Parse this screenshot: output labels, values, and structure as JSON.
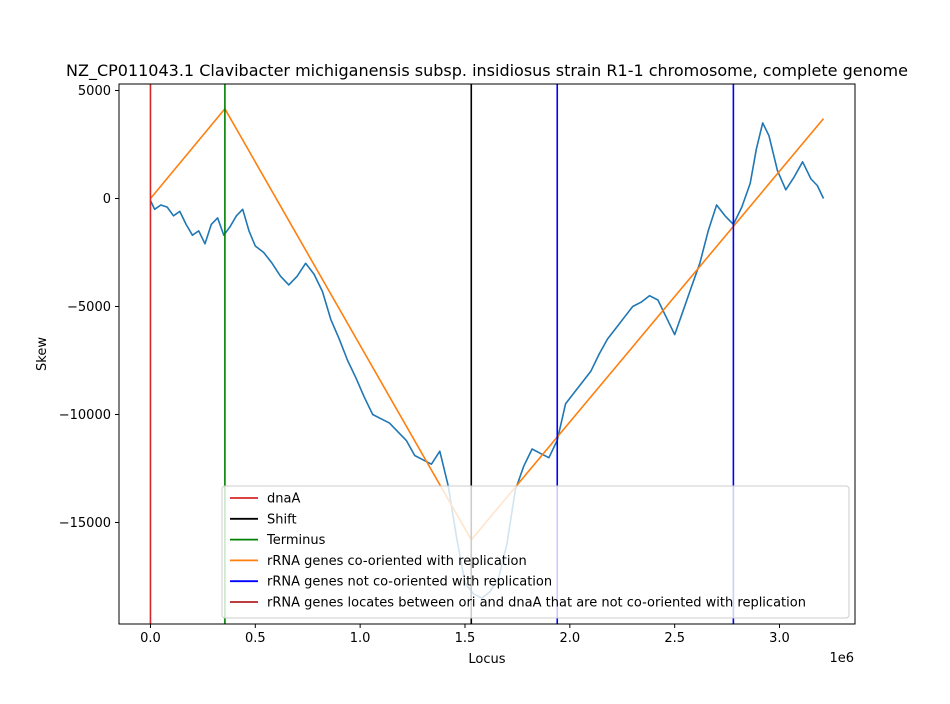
{
  "chart_data": {
    "type": "line",
    "title": "NZ_CP011043.1 Clavibacter michiganensis subsp. insidiosus strain R1-1 chromosome, complete genome",
    "xlabel": "Locus",
    "ylabel": "Skew",
    "x_offset_label": "1e6",
    "xlim": [
      -150000,
      3360000
    ],
    "ylim": [
      -19700,
      5300
    ],
    "x_ticks": [
      0,
      500000,
      1000000,
      1500000,
      2000000,
      2500000,
      3000000
    ],
    "x_tick_labels": [
      "0.0",
      "0.5",
      "1.0",
      "1.5",
      "2.0",
      "2.5",
      "3.0"
    ],
    "y_ticks": [
      5000,
      0,
      -5000,
      -10000,
      -15000
    ],
    "y_tick_labels": [
      "5000",
      "0",
      "−5000",
      "−10000",
      "−15000"
    ],
    "grid": false,
    "legend_placement": "lower-right",
    "series": [
      {
        "kind": "line",
        "color": "#1f77b4",
        "x": [
          0,
          20000,
          50000,
          80000,
          110000,
          140000,
          170000,
          200000,
          230000,
          260000,
          290000,
          320000,
          350000,
          380000,
          410000,
          440000,
          470000,
          500000,
          540000,
          580000,
          620000,
          660000,
          700000,
          740000,
          780000,
          820000,
          860000,
          900000,
          940000,
          980000,
          1020000,
          1060000,
          1100000,
          1140000,
          1180000,
          1220000,
          1260000,
          1300000,
          1340000,
          1380000,
          1420000,
          1460000,
          1500000,
          1540000,
          1580000,
          1620000,
          1660000,
          1700000,
          1740000,
          1780000,
          1820000,
          1860000,
          1900000,
          1940000,
          1980000,
          2020000,
          2060000,
          2100000,
          2140000,
          2180000,
          2220000,
          2260000,
          2300000,
          2340000,
          2380000,
          2420000,
          2460000,
          2500000,
          2540000,
          2580000,
          2620000,
          2660000,
          2700000,
          2740000,
          2780000,
          2820000,
          2860000,
          2890000,
          2920000,
          2950000,
          2990000,
          3030000,
          3070000,
          3110000,
          3150000,
          3180000,
          3210000
        ],
        "y": [
          -100,
          -500,
          -300,
          -400,
          -800,
          -600,
          -1200,
          -1700,
          -1500,
          -2100,
          -1200,
          -900,
          -1700,
          -1300,
          -800,
          -500,
          -1500,
          -2200,
          -2500,
          -3000,
          -3600,
          -4000,
          -3600,
          -3000,
          -3500,
          -4300,
          -5600,
          -6500,
          -7500,
          -8300,
          -9200,
          -10000,
          -10200,
          -10400,
          -10800,
          -11200,
          -11900,
          -12100,
          -12300,
          -11700,
          -13300,
          -15700,
          -17800,
          -18300,
          -18500,
          -18200,
          -17600,
          -16000,
          -13500,
          -12400,
          -11600,
          -11800,
          -12000,
          -11200,
          -9500,
          -9000,
          -8500,
          -8000,
          -7200,
          -6500,
          -6000,
          -5500,
          -5000,
          -4800,
          -4500,
          -4700,
          -5500,
          -6300,
          -5200,
          -4100,
          -3000,
          -1500,
          -300,
          -800,
          -1200,
          -400,
          700,
          2300,
          3500,
          2900,
          1300,
          400,
          1000,
          1700,
          900,
          600,
          0
        ]
      },
      {
        "kind": "line",
        "color": "#ff7f0e",
        "x": [
          0,
          355000,
          1530000,
          3210000
        ],
        "y": [
          0,
          4150,
          -15800,
          3700
        ]
      }
    ],
    "vertical_lines": [
      {
        "name": "dnaA",
        "x": 0,
        "color": "#d62728"
      },
      {
        "name": "Terminus",
        "x": 355000,
        "color": "#008000"
      },
      {
        "name": "Shift",
        "x": 1530000,
        "color": "#000000"
      },
      {
        "name": "rRNA genes not co-oriented with replication",
        "x": 1940000,
        "color": "#0000ff"
      },
      {
        "name": "rRNA genes not co-oriented with replication",
        "x": 2780000,
        "color": "#0000ff"
      }
    ],
    "legend": [
      {
        "label": "dnaA",
        "color": "#d62728"
      },
      {
        "label": "Shift",
        "color": "#000000"
      },
      {
        "label": "Terminus",
        "color": "#008000"
      },
      {
        "label": "rRNA genes co-oriented with replication",
        "color": "#ff7f0e"
      },
      {
        "label": "rRNA genes not co-oriented with replication",
        "color": "#0000ff"
      },
      {
        "label": "rRNA genes locates between ori and dnaA that are not co-oriented with replication",
        "color": "#b22222"
      }
    ]
  }
}
